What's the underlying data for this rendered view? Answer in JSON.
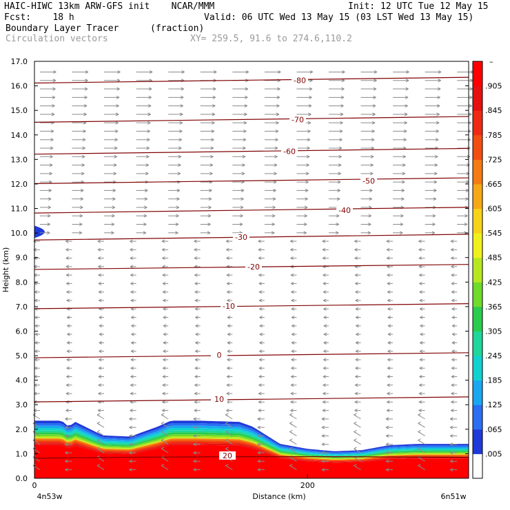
{
  "header": {
    "line1_left": "HAIC-HIWC 13km ARW-GFS init    NCAR/MMM",
    "line1_right": "Init: 12 UTC Tue 12 May 15",
    "line2_left": "Fcst:    18 h",
    "line2_right": "Valid: 06 UTC Wed 13 May 15 (03 LST Wed 13 May 15)",
    "field": "Boundary Layer Tracer",
    "field_units": "(fraction)",
    "overlay": "Circulation vectors",
    "xy": "XY= 259.5, 91.6 to 274.6,110.2"
  },
  "chart_data": {
    "type": "heatmap",
    "ylabel": "Height (km)",
    "xlabel": "Distance (km)",
    "ylim": [
      0,
      17
    ],
    "xlim": [
      0,
      318
    ],
    "y_ticks": [
      "0.0",
      "1.0",
      "2.0",
      "3.0",
      "4.0",
      "5.0",
      "6.0",
      "7.0",
      "8.0",
      "9.0",
      "10.0",
      "11.0",
      "12.0",
      "13.0",
      "14.0",
      "15.0",
      "16.0",
      "17.0"
    ],
    "x_ticks": [
      {
        "value": 0,
        "label": "0"
      },
      {
        "value": 200,
        "label": "200"
      }
    ],
    "x_end_labels": {
      "left": "4n53w",
      "right": "6n51w"
    },
    "colorbar": {
      "labels": [
        ".005",
        ".065",
        ".125",
        ".185",
        ".245",
        ".305",
        ".365",
        ".425",
        ".485",
        ".545",
        ".605",
        ".665",
        ".725",
        ".785",
        ".845",
        ".905"
      ],
      "colors": [
        "#ffffff",
        "#1f3ad9",
        "#2a6ff2",
        "#1aa7f0",
        "#12d2d0",
        "#1fd79a",
        "#29cc4d",
        "#6fdb2a",
        "#b7e81f",
        "#f0f01e",
        "#f7d21a",
        "#f7a816",
        "#f57b14",
        "#f24e12",
        "#ee2a12",
        "#e61010",
        "#ff0000"
      ]
    },
    "boundary_layer_top_km": {
      "x": [
        0,
        20,
        25,
        30,
        50,
        70,
        90,
        100,
        120,
        150,
        160,
        180,
        200,
        220,
        240,
        260,
        280,
        318
      ],
      "y": [
        2.35,
        2.35,
        2.1,
        2.3,
        1.75,
        1.7,
        2.1,
        2.35,
        2.35,
        2.3,
        2.1,
        1.4,
        1.2,
        1.1,
        1.15,
        1.35,
        1.4,
        1.4
      ]
    },
    "upper_layer_patch": {
      "x": [
        0,
        15
      ],
      "y": [
        9.8,
        10.3
      ]
    },
    "temperature_contours": [
      {
        "label": "20",
        "level_km": 0.9
      },
      {
        "label": "10",
        "level_km": 3.2
      },
      {
        "label": "0",
        "level_km": 5.0
      },
      {
        "label": "-10",
        "level_km": 7.0
      },
      {
        "label": "-20",
        "level_km": 8.6
      },
      {
        "label": "-30",
        "level_km": 9.8
      },
      {
        "label": "-40",
        "level_km": 10.9
      },
      {
        "label": "-50",
        "level_km": 12.1
      },
      {
        "label": "-60",
        "level_km": 13.3
      },
      {
        "label": "-70",
        "level_km": 14.6
      },
      {
        "label": "-80",
        "level_km": 16.2
      }
    ],
    "vector_field": {
      "description_levels_km": [
        0.3,
        16.8
      ],
      "upper_flow": "westerly",
      "lower_flow": "easterly",
      "transition_km": 9.8
    }
  }
}
